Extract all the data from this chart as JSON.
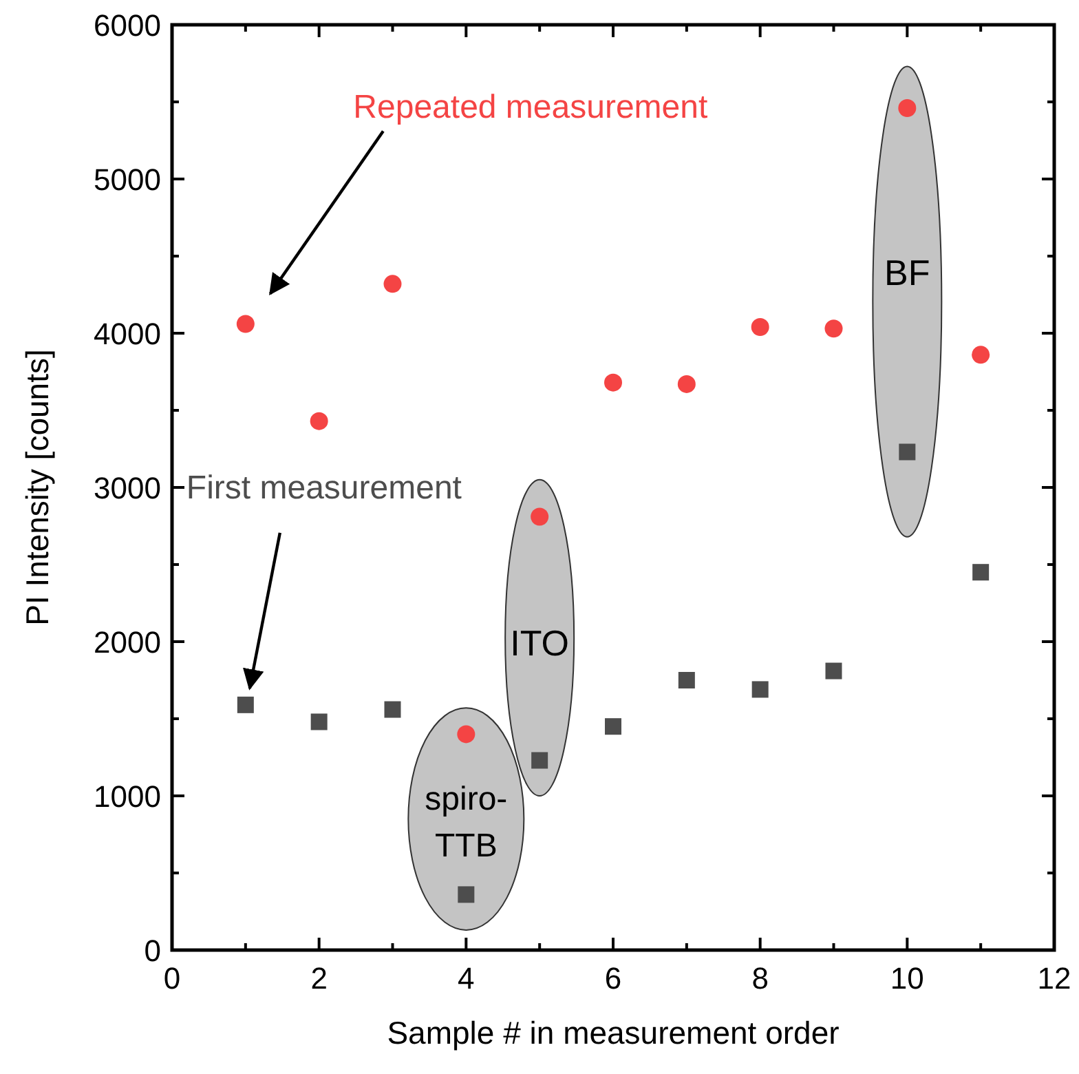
{
  "chart_data": {
    "type": "scatter",
    "xlabel": "Sample # in measurement order",
    "ylabel": "PI Intensity [counts]",
    "xlim": [
      0,
      12
    ],
    "xticks": [
      0,
      {
        "value": 1,
        "label": null
      },
      2,
      {
        "value": 3,
        "label": null
      },
      4,
      {
        "value": 5,
        "label": null
      },
      6,
      {
        "value": 7,
        "label": null
      },
      8,
      {
        "value": 9,
        "label": null
      },
      10,
      {
        "value": 11,
        "label": null
      },
      12
    ],
    "ylim": [
      0,
      6000
    ],
    "yticks": [
      0,
      {
        "value": 500,
        "label": null
      },
      1000,
      {
        "value": 1500,
        "label": null
      },
      2000,
      {
        "value": 2500,
        "label": null
      },
      3000,
      {
        "value": 3500,
        "label": null
      },
      4000,
      {
        "value": 4500,
        "label": null
      },
      5000,
      {
        "value": 5500,
        "label": null
      },
      6000
    ],
    "x": [
      1,
      2,
      3,
      4,
      5,
      6,
      7,
      8,
      9,
      10,
      11
    ],
    "series": [
      {
        "name": "Repeated measurement",
        "color": "#f44444",
        "marker": "circle",
        "values": [
          4060,
          3430,
          4320,
          1400,
          2810,
          3680,
          3670,
          4040,
          4030,
          5460,
          3860
        ]
      },
      {
        "name": "First measurement",
        "color": "#4d4d4d",
        "marker": "square",
        "values": [
          1590,
          1480,
          1560,
          360,
          1230,
          1450,
          1750,
          1690,
          1810,
          3230,
          2450
        ]
      }
    ],
    "annotations": [
      "spiro-TTB",
      "ITO",
      "BF"
    ]
  }
}
